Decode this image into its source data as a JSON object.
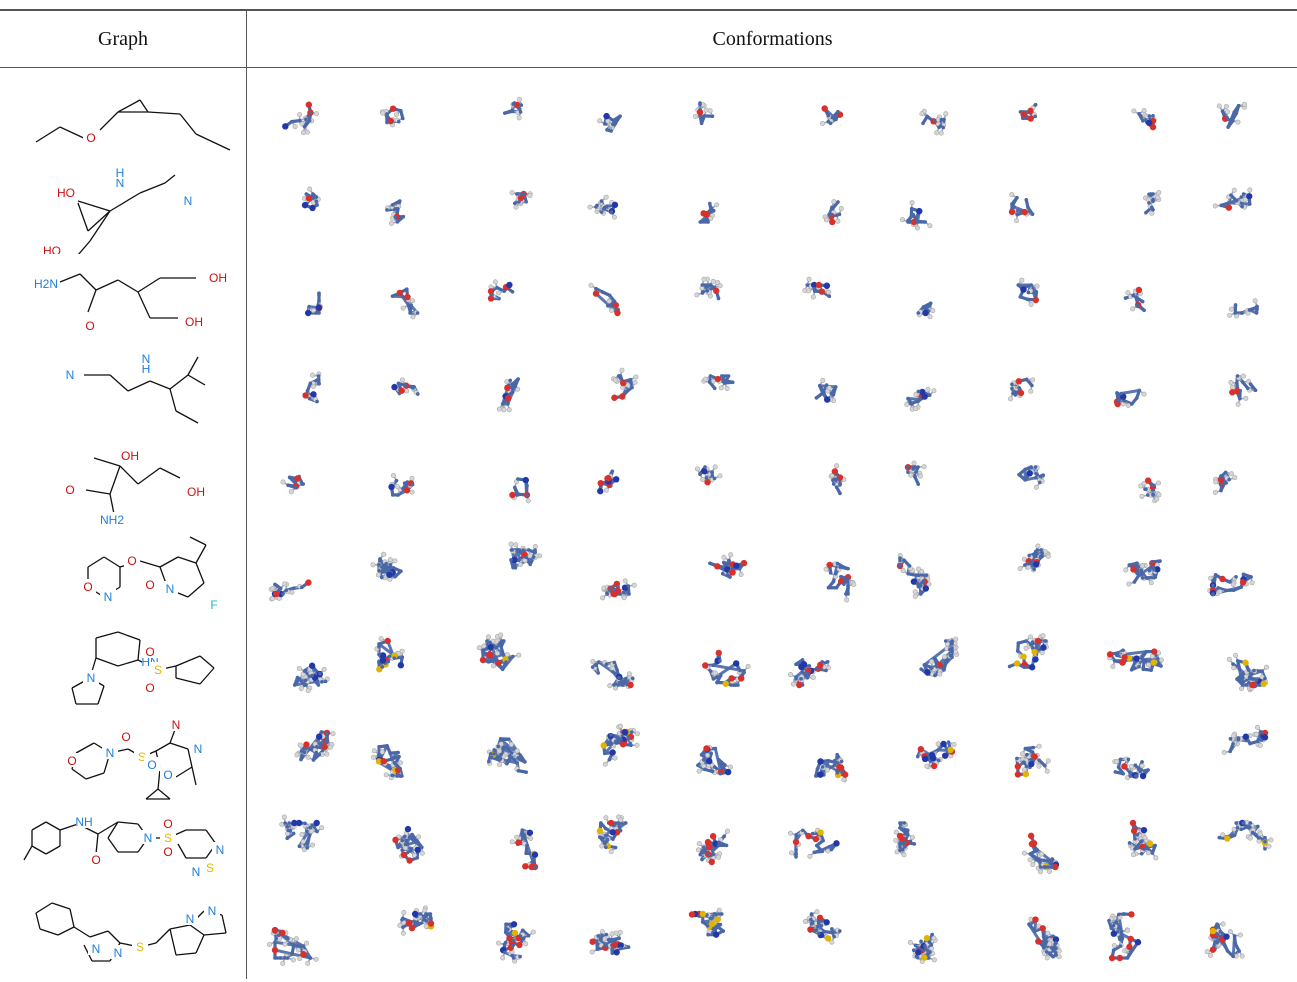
{
  "table": {
    "header": {
      "graph": "Graph",
      "conformations": "Conformations"
    },
    "atom_colors": {
      "carbon": "#4a68a8",
      "oxygen": "#d8302a",
      "nitrogen": "#2238a8",
      "sulfur": "#e0b400",
      "hydrogen": "#d6d6d6",
      "label_o": "#cc1111",
      "label_n": "#1f7fe0",
      "label_s": "#e6b800"
    },
    "rows": [
      {
        "id": "cyclopropyl-ether",
        "labels": [
          "O"
        ],
        "conformers": 10
      },
      {
        "id": "aziridine-nitrile",
        "labels": [
          "HO",
          "N",
          "H",
          "N",
          "HO"
        ],
        "conformers": 10
      },
      {
        "id": "amide-diol",
        "labels": [
          "H2N",
          "OH",
          "O",
          "OH"
        ],
        "conformers": 10
      },
      {
        "id": "aminonitrile",
        "labels": [
          "N",
          "H",
          "N"
        ],
        "conformers": 10
      },
      {
        "id": "hydroxy-amide",
        "labels": [
          "OH",
          "O",
          "NH2",
          "OH"
        ],
        "conformers": 10
      },
      {
        "id": "indole-morpholine",
        "labels": [
          "O",
          "N",
          "O",
          "O",
          "N",
          "F"
        ],
        "conformers": 10
      },
      {
        "id": "piperidine-sulfonamide",
        "labels": [
          "N",
          "HN",
          "S",
          "O",
          "O"
        ],
        "conformers": 10
      },
      {
        "id": "morpholine-pyrimidine",
        "labels": [
          "O",
          "N",
          "O",
          "S",
          "N",
          "N",
          "O",
          "O"
        ],
        "conformers": 10
      },
      {
        "id": "benzothiadiazole-amide",
        "labels": [
          "NH",
          "O",
          "N",
          "S",
          "O",
          "O",
          "N",
          "S",
          "N"
        ],
        "conformers": 10
      },
      {
        "id": "pyrimidine-thioether",
        "labels": [
          "N",
          "N",
          "S",
          "N",
          "N"
        ],
        "conformers": 10
      }
    ]
  }
}
